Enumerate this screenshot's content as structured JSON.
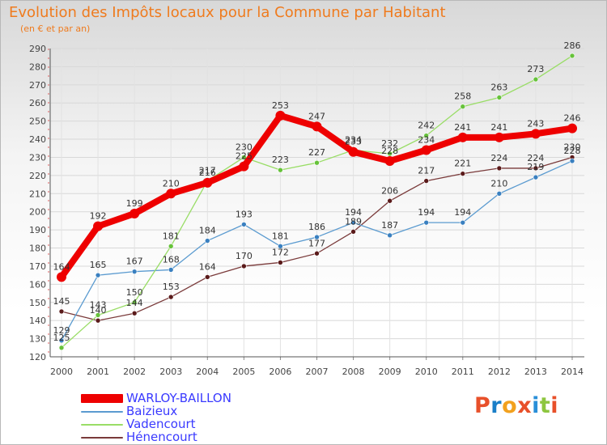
{
  "title": "Evolution des Impôts locaux pour la Commune par Habitant",
  "subtitle": "(en € et par an)",
  "logo": {
    "text": "Proxiti",
    "letters": [
      {
        "ch": "P",
        "color": "#e8502a"
      },
      {
        "ch": "r",
        "color": "#1a7fc8"
      },
      {
        "ch": "o",
        "color": "#f2a11e"
      },
      {
        "ch": "x",
        "color": "#e8502a"
      },
      {
        "ch": "i",
        "color": "#2a8fd8"
      },
      {
        "ch": "t",
        "color": "#8dc63f"
      },
      {
        "ch": "i",
        "color": "#e8502a"
      }
    ]
  },
  "chart_data": {
    "type": "line",
    "title": "Evolution des Impôts locaux pour la Commune par Habitant",
    "ylabel": "(en € et par an)",
    "xlabel": "",
    "ylim": [
      120,
      290
    ],
    "yticks": [
      120,
      130,
      140,
      150,
      160,
      170,
      180,
      190,
      200,
      210,
      220,
      230,
      240,
      250,
      260,
      270,
      280,
      290
    ],
    "grid": true,
    "legend": "bottom-left",
    "categories": [
      "2000",
      "2001",
      "2002",
      "2003",
      "2004",
      "2005",
      "2006",
      "2007",
      "2008",
      "2009",
      "2010",
      "2011",
      "2012",
      "2013",
      "2014"
    ],
    "series": [
      {
        "name": "WARLOY-BAILLON",
        "color": "#ee0000",
        "markerColor": "#ee0000",
        "values": [
          164,
          192,
          199,
          210,
          216,
          225,
          253,
          247,
          233,
          228,
          234,
          241,
          241,
          243,
          246
        ]
      },
      {
        "name": "Baizieux",
        "color": "#5b9bd0",
        "markerColor": "#3a80c0",
        "values": [
          129,
          165,
          167,
          168,
          184,
          193,
          181,
          186,
          194,
          187,
          194,
          194,
          210,
          219,
          228
        ]
      },
      {
        "name": "Vadencourt",
        "color": "#99dd66",
        "markerColor": "#66c23a",
        "values": [
          125,
          143,
          150,
          181,
          217,
          230,
          223,
          227,
          234,
          232,
          242,
          258,
          263,
          273,
          286
        ]
      },
      {
        "name": "Hénencourt",
        "color": "#7a3a3a",
        "markerColor": "#5a1a1a",
        "values": [
          145,
          140,
          144,
          153,
          164,
          170,
          172,
          177,
          189,
          206,
          217,
          221,
          224,
          224,
          230
        ]
      }
    ]
  }
}
